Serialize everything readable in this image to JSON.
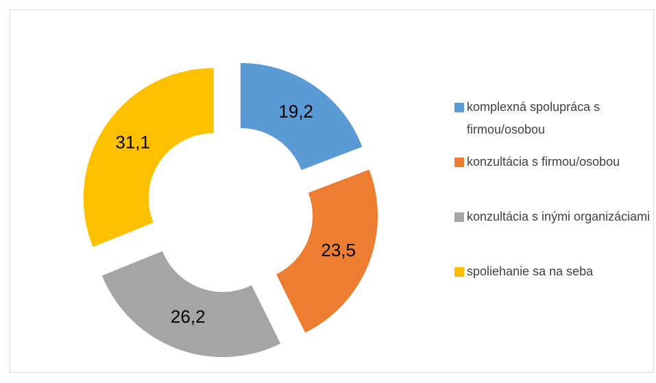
{
  "chart_data": {
    "type": "doughnut",
    "categories": [
      "komplexná spolupráca s firmou/osobou",
      "konzultácia s firmou/osobou",
      "konzultácia s inými organizáciami",
      "spoliehanie sa na seba"
    ],
    "values": [
      19.2,
      23.5,
      26.2,
      31.1
    ],
    "value_labels": [
      "19,2",
      "23,5",
      "26,2",
      "31,1"
    ],
    "colors": [
      "#5b9bd5",
      "#ed7d31",
      "#a5a5a5",
      "#ffc000"
    ],
    "legend": "right"
  }
}
